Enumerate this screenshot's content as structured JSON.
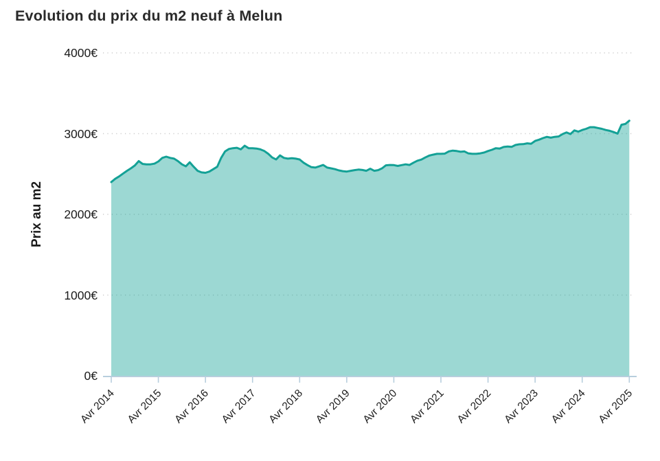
{
  "header": {
    "title": "Evolution du prix du m2 neuf à Melun"
  },
  "chart_data": {
    "type": "area",
    "title": "Evolution du prix du m2 neuf à Melun",
    "xlabel": "",
    "ylabel": "Prix au m2",
    "ylim": [
      0,
      4000
    ],
    "y_tick_values": [
      0,
      1000,
      2000,
      3000,
      4000
    ],
    "y_tick_labels": [
      "0€",
      "1000€",
      "2000€",
      "3000€",
      "4000€"
    ],
    "x_tick_labels": [
      "Avr 2014",
      "Avr 2015",
      "Avr 2016",
      "Avr 2017",
      "Avr 2018",
      "Avr 2019",
      "Avr 2020",
      "Avr 2021",
      "Avr 2022",
      "Avr 2023",
      "Avr 2024",
      "Avr 2025"
    ],
    "x_range": [
      "Avr 2014",
      "Avr 2025"
    ],
    "frequency": "monthly",
    "grid": "dotted-horizontal",
    "legend": "none",
    "series": [
      {
        "name": "Prix au m2 neuf à Melun",
        "unit": "€/m2",
        "monthly_values": [
          2400,
          2440,
          2470,
          2505,
          2540,
          2570,
          2605,
          2660,
          2625,
          2620,
          2620,
          2628,
          2655,
          2700,
          2715,
          2700,
          2690,
          2660,
          2620,
          2595,
          2645,
          2590,
          2540,
          2520,
          2515,
          2530,
          2560,
          2590,
          2700,
          2780,
          2810,
          2820,
          2825,
          2805,
          2850,
          2820,
          2820,
          2815,
          2805,
          2785,
          2750,
          2705,
          2680,
          2730,
          2700,
          2690,
          2695,
          2690,
          2680,
          2640,
          2610,
          2585,
          2580,
          2595,
          2612,
          2580,
          2570,
          2560,
          2545,
          2535,
          2530,
          2540,
          2548,
          2555,
          2550,
          2540,
          2565,
          2540,
          2548,
          2570,
          2608,
          2612,
          2610,
          2600,
          2610,
          2620,
          2612,
          2640,
          2665,
          2678,
          2705,
          2728,
          2740,
          2750,
          2750,
          2752,
          2780,
          2790,
          2785,
          2775,
          2780,
          2755,
          2750,
          2750,
          2756,
          2766,
          2785,
          2800,
          2820,
          2815,
          2835,
          2840,
          2836,
          2860,
          2868,
          2870,
          2880,
          2875,
          2910,
          2925,
          2945,
          2960,
          2950,
          2960,
          2965,
          2995,
          3015,
          2995,
          3040,
          3025,
          3045,
          3060,
          3080,
          3080,
          3070,
          3060,
          3045,
          3035,
          3020,
          3000,
          3110,
          3120,
          3160
        ]
      }
    ],
    "colors": {
      "line": "#14a196",
      "fill": "#14a196",
      "fill_opacity": 0.42,
      "grid": "#cbcbcb",
      "axis": "#b7cedd",
      "text": "#1b1b1b"
    }
  }
}
